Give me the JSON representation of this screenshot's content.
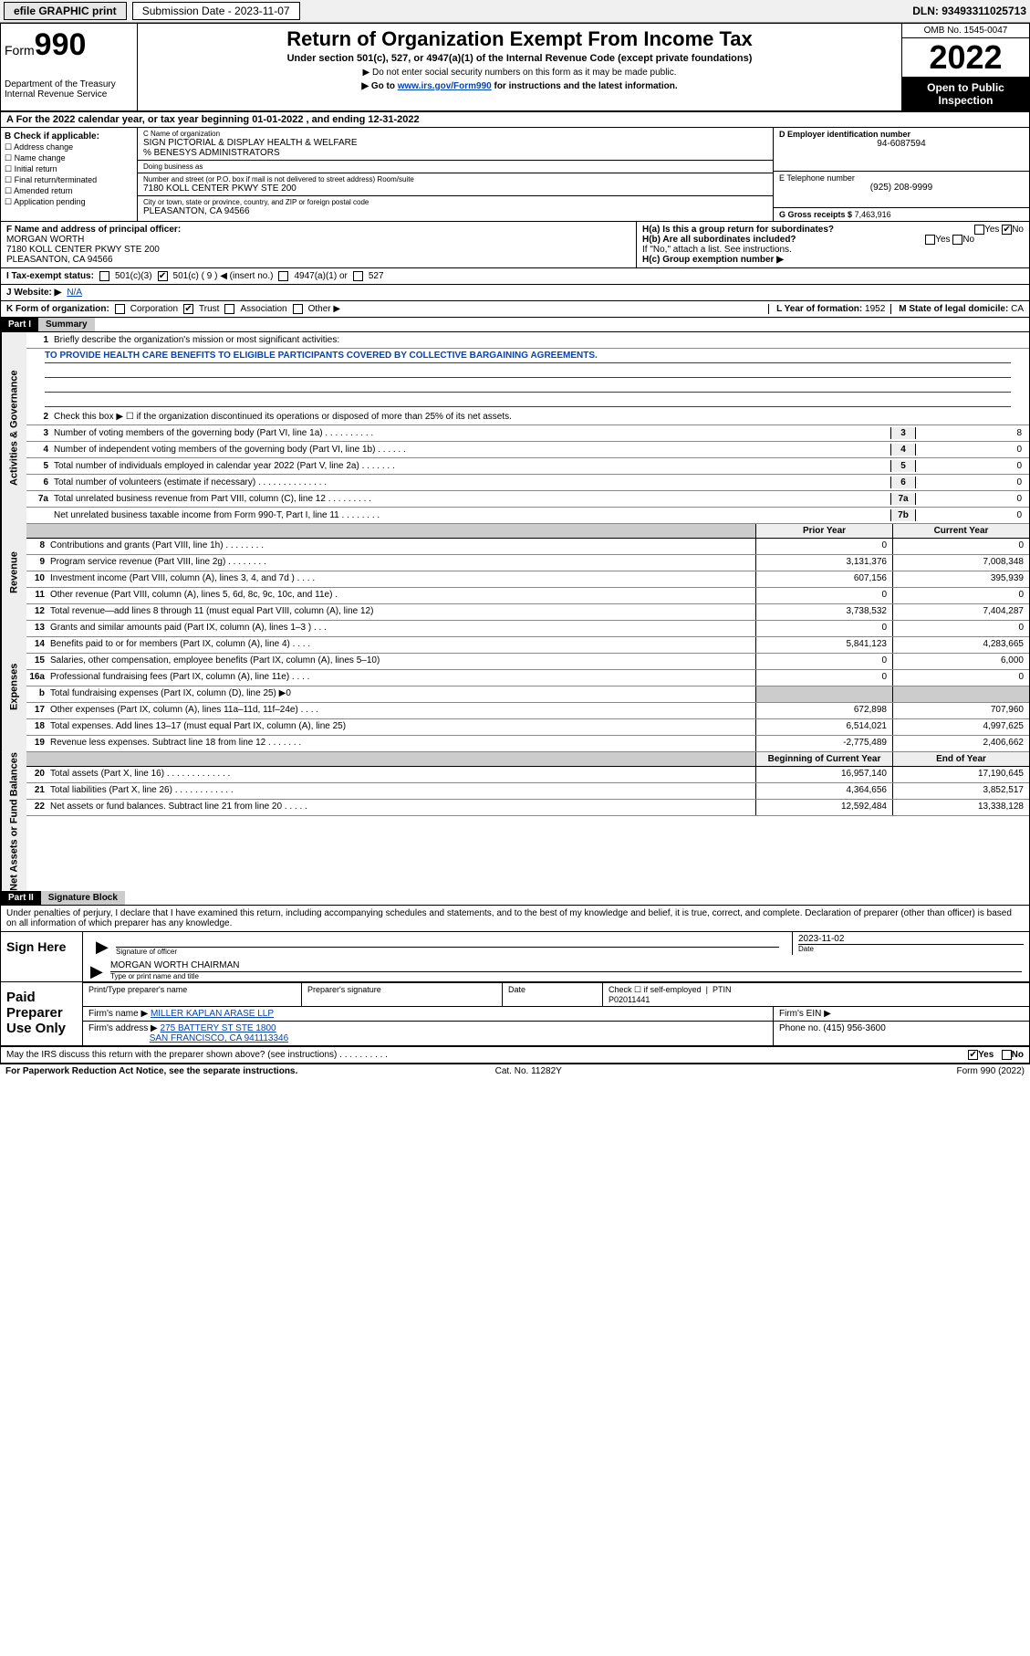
{
  "topbar": {
    "efile": "efile GRAPHIC print",
    "subdate_lbl": "Submission Date - 2023-11-07",
    "dln": "DLN: 93493311025713"
  },
  "header": {
    "form_word": "Form",
    "form_num": "990",
    "dept": "Department of the Treasury Internal Revenue Service",
    "title": "Return of Organization Exempt From Income Tax",
    "sub1": "Under section 501(c), 527, or 4947(a)(1) of the Internal Revenue Code (except private foundations)",
    "sub2": "▶ Do not enter social security numbers on this form as it may be made public.",
    "sub3_a": "▶ Go to ",
    "sub3_link": "www.irs.gov/Form990",
    "sub3_b": " for instructions and the latest information.",
    "omb": "OMB No. 1545-0047",
    "year": "2022",
    "open": "Open to Public Inspection"
  },
  "A": {
    "line": "A For the 2022 calendar year, or tax year beginning 01-01-2022    , and ending 12-31-2022"
  },
  "B": {
    "hdr": "B Check if applicable:",
    "opts": [
      "☐ Address change",
      "☐ Name change",
      "☐ Initial return",
      "☐ Final return/terminated",
      "☐ Amended return",
      "☐ Application pending"
    ]
  },
  "C": {
    "name_lbl": "C Name of organization",
    "name": "SIGN PICTORIAL & DISPLAY HEALTH & WELFARE",
    "care": "% BENESYS ADMINISTRATORS",
    "dba_lbl": "Doing business as",
    "dba": "",
    "addr_lbl": "Number and street (or P.O. box if mail is not delivered to street address)      Room/suite",
    "addr": "7180 KOLL CENTER PKWY STE 200",
    "city_lbl": "City or town, state or province, country, and ZIP or foreign postal code",
    "city": "PLEASANTON, CA  94566"
  },
  "D": {
    "lbl": "D Employer identification number",
    "val": "94-6087594"
  },
  "E": {
    "lbl": "E Telephone number",
    "val": "(925) 208-9999"
  },
  "G": {
    "lbl": "G Gross receipts $",
    "val": "7,463,916"
  },
  "F": {
    "lbl": "F  Name and address of principal officer:",
    "name": "MORGAN WORTH",
    "addr1": "7180 KOLL CENTER PKWY STE 200",
    "addr2": "PLEASANTON, CA  94566"
  },
  "H": {
    "a": "H(a)  Is this a group return for subordinates?",
    "a_yes": "Yes",
    "a_no": "No",
    "b": "H(b)  Are all subordinates included?",
    "b_yes": "Yes",
    "b_no": "No",
    "b_note": "If \"No,\" attach a list. See instructions.",
    "c": "H(c)  Group exemption number ▶"
  },
  "I": {
    "lbl": "I   Tax-exempt status:",
    "c3": "501(c)(3)",
    "c": "501(c) ( 9 ) ◀ (insert no.)",
    "a1": "4947(a)(1) or",
    "s527": "527"
  },
  "J": {
    "lbl": "J   Website: ▶",
    "val": "N/A"
  },
  "K": {
    "lbl": "K Form of organization:",
    "corp": "Corporation",
    "trust": "Trust",
    "assoc": "Association",
    "other": "Other ▶"
  },
  "L": {
    "lbl": "L Year of formation:",
    "val": "1952"
  },
  "M": {
    "lbl": "M State of legal domicile:",
    "val": "CA"
  },
  "part1": {
    "hdr": "Part I",
    "title": "Summary"
  },
  "sections": {
    "gov": "Activities & Governance",
    "rev": "Revenue",
    "exp": "Expenses",
    "net": "Net Assets or Fund Balances"
  },
  "l1": {
    "lbl": "Briefly describe the organization's mission or most significant activities:",
    "val": "TO PROVIDE HEALTH CARE BENEFITS TO ELIGIBLE PARTICIPANTS COVERED BY COLLECTIVE BARGAINING AGREEMENTS."
  },
  "l2": "Check this box ▶ ☐  if the organization discontinued its operations or disposed of more than 25% of its net assets.",
  "gov_lines": [
    {
      "n": "3",
      "t": "Number of voting members of the governing body (Part VI, line 1a)  .    .    .    .    .    .    .    .    .    .",
      "box": "3",
      "v": "8"
    },
    {
      "n": "4",
      "t": "Number of independent voting members of the governing body (Part VI, line 1b)  .    .    .    .    .    .",
      "box": "4",
      "v": "0"
    },
    {
      "n": "5",
      "t": "Total number of individuals employed in calendar year 2022 (Part V, line 2a)  .    .    .    .    .    .    .",
      "box": "5",
      "v": "0"
    },
    {
      "n": "6",
      "t": "Total number of volunteers (estimate if necessary)   .    .    .    .    .    .    .    .    .    .    .    .    .    .",
      "box": "6",
      "v": "0"
    },
    {
      "n": "7a",
      "t": "Total unrelated business revenue from Part VIII, column (C), line 12   .    .    .    .    .    .    .    .    .",
      "box": "7a",
      "v": "0"
    },
    {
      "n": "",
      "t": "Net unrelated business taxable income from Form 990-T, Part I, line 11   .    .    .    .    .    .    .    .",
      "box": "7b",
      "v": "0"
    }
  ],
  "cols": {
    "prior": "Prior Year",
    "current": "Current Year",
    "boy": "Beginning of Current Year",
    "eoy": "End of Year"
  },
  "rev": [
    {
      "n": "8",
      "t": "Contributions and grants (Part VIII, line 1h)   .    .    .    .    .    .    .    .",
      "c1": "0",
      "c2": "0"
    },
    {
      "n": "9",
      "t": "Program service revenue (Part VIII, line 2g)   .    .    .    .    .    .    .    .",
      "c1": "3,131,376",
      "c2": "7,008,348"
    },
    {
      "n": "10",
      "t": "Investment income (Part VIII, column (A), lines 3, 4, and 7d )   .    .    .    .",
      "c1": "607,156",
      "c2": "395,939"
    },
    {
      "n": "11",
      "t": "Other revenue (Part VIII, column (A), lines 5, 6d, 8c, 9c, 10c, and 11e)   .",
      "c1": "0",
      "c2": "0"
    },
    {
      "n": "12",
      "t": "Total revenue—add lines 8 through 11 (must equal Part VIII, column (A), line 12)",
      "c1": "3,738,532",
      "c2": "7,404,287"
    }
  ],
  "exp": [
    {
      "n": "13",
      "t": "Grants and similar amounts paid (Part IX, column (A), lines 1–3 )   .    .    .",
      "c1": "0",
      "c2": "0"
    },
    {
      "n": "14",
      "t": "Benefits paid to or for members (Part IX, column (A), line 4)   .    .    .    .",
      "c1": "5,841,123",
      "c2": "4,283,665"
    },
    {
      "n": "15",
      "t": "Salaries, other compensation, employee benefits (Part IX, column (A), lines 5–10)",
      "c1": "0",
      "c2": "6,000"
    },
    {
      "n": "16a",
      "t": "Professional fundraising fees (Part IX, column (A), line 11e)   .    .    .    .",
      "c1": "0",
      "c2": "0"
    },
    {
      "n": "b",
      "t": "Total fundraising expenses (Part IX, column (D), line 25) ▶0",
      "c1": "",
      "c2": "",
      "grey": true
    },
    {
      "n": "17",
      "t": "Other expenses (Part IX, column (A), lines 11a–11d, 11f–24e)   .    .    .    .",
      "c1": "672,898",
      "c2": "707,960"
    },
    {
      "n": "18",
      "t": "Total expenses. Add lines 13–17 (must equal Part IX, column (A), line 25)",
      "c1": "6,514,021",
      "c2": "4,997,625"
    },
    {
      "n": "19",
      "t": "Revenue less expenses. Subtract line 18 from line 12  .    .    .    .    .    .    .",
      "c1": "-2,775,489",
      "c2": "2,406,662"
    }
  ],
  "net": [
    {
      "n": "20",
      "t": "Total assets (Part X, line 16)  .    .    .    .    .    .    .    .    .    .    .    .    .",
      "c1": "16,957,140",
      "c2": "17,190,645"
    },
    {
      "n": "21",
      "t": "Total liabilities (Part X, line 26)  .    .    .    .    .    .    .    .    .    .    .    .",
      "c1": "4,364,656",
      "c2": "3,852,517"
    },
    {
      "n": "22",
      "t": "Net assets or fund balances. Subtract line 21 from line 20   .    .    .    .    .",
      "c1": "12,592,484",
      "c2": "13,338,128"
    }
  ],
  "part2": {
    "hdr": "Part II",
    "title": "Signature Block"
  },
  "decl": "Under penalties of perjury, I declare that I have examined this return, including accompanying schedules and statements, and to the best of my knowledge and belief, it is true, correct, and complete. Declaration of preparer (other than officer) is based on all information of which preparer has any knowledge.",
  "sign": {
    "here": "Sign Here",
    "sig_lbl": "Signature of officer",
    "date": "2023-11-02",
    "date_lbl": "Date",
    "name": "MORGAN WORTH  CHAIRMAN",
    "name_lbl": "Type or print name and title"
  },
  "paid": {
    "here": "Paid Preparer Use Only",
    "h1": "Print/Type preparer's name",
    "h2": "Preparer's signature",
    "h3": "Date",
    "h4a": "Check ☐ if self-employed",
    "h4b": "PTIN",
    "ptin": "P02011441",
    "firm_lbl": "Firm's name      ▶",
    "firm": "MILLER KAPLAN ARASE LLP",
    "ein_lbl": "Firm's EIN ▶",
    "addr_lbl": "Firm's address ▶",
    "addr1": "275 BATTERY ST STE 1800",
    "addr2": "SAN FRANCISCO, CA  941113346",
    "phone_lbl": "Phone no.",
    "phone": "(415) 956-3600"
  },
  "discuss": {
    "q": "May the IRS discuss this return with the preparer shown above? (see instructions)  .    .    .    .    .    .    .    .    .    .",
    "yes": "Yes",
    "no": "No"
  },
  "footer": {
    "left": "For Paperwork Reduction Act Notice, see the separate instructions.",
    "mid": "Cat. No. 11282Y",
    "right": "Form 990 (2022)"
  }
}
